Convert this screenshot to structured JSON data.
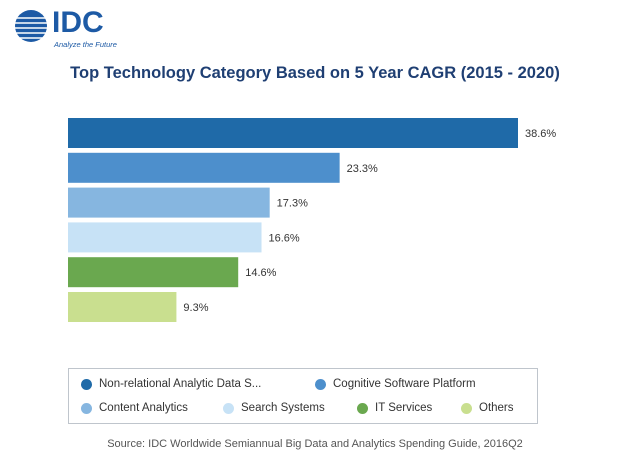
{
  "header": {
    "logo_text": "IDC",
    "logo_tagline": "Analyze the Future",
    "title": "Top Technology Category Based on 5 Year CAGR (2015 - 2020)"
  },
  "chart_data": {
    "type": "bar",
    "orientation": "horizontal",
    "title": "Top Technology Category Based on 5 Year CAGR (2015 - 2020)",
    "categories": [
      "Non-relational Analytic Data S...",
      "Cognitive Software Platform",
      "Content Analytics",
      "Search Systems",
      "IT Services",
      "Others"
    ],
    "values": [
      38.6,
      23.3,
      17.3,
      16.6,
      14.6,
      9.3
    ],
    "value_labels": [
      "38.6%",
      "23.3%",
      "17.3%",
      "16.6%",
      "14.6%",
      "9.3%"
    ],
    "colors": [
      "#1f6aa8",
      "#4d8fcc",
      "#86b6e0",
      "#c7e2f6",
      "#6aa84f",
      "#c9df8f"
    ],
    "unit": "%",
    "xlim": [
      0,
      40
    ],
    "grid": false,
    "legend_position": "bottom"
  },
  "legend": {
    "items": [
      {
        "label": "Non-relational Analytic Data S...",
        "color": "#1f6aa8"
      },
      {
        "label": "Cognitive Software Platform",
        "color": "#4d8fcc"
      },
      {
        "label": "Content Analytics",
        "color": "#86b6e0"
      },
      {
        "label": "Search Systems",
        "color": "#c7e2f6"
      },
      {
        "label": "IT Services",
        "color": "#6aa84f"
      },
      {
        "label": "Others",
        "color": "#c9df8f"
      }
    ]
  },
  "footer": {
    "source": "Source: IDC Worldwide Semiannual Big Data and Analytics Spending Guide, 2016Q2"
  }
}
